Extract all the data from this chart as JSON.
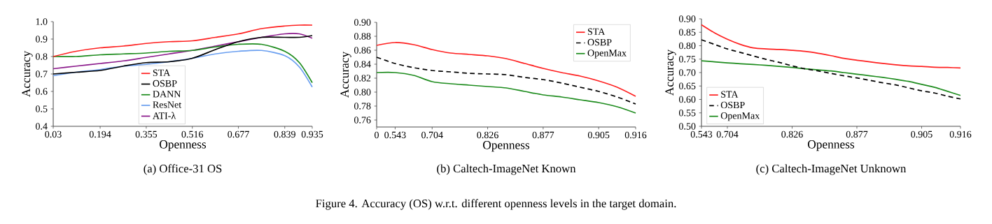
{
  "chart_data": [
    {
      "type": "line",
      "title": "(a) Office-31 OS",
      "xlabel": "Openness",
      "ylabel": "Accuracy",
      "x": [
        0.03,
        0.11,
        0.194,
        0.275,
        0.355,
        0.435,
        0.516,
        0.597,
        0.677,
        0.758,
        0.839,
        0.89,
        0.935
      ],
      "xlim": [
        0.03,
        0.935
      ],
      "xticks": [
        0.03,
        0.194,
        0.355,
        0.516,
        0.677,
        0.839,
        0.935
      ],
      "ylim": [
        0.4,
        1.0
      ],
      "yticks": [
        0.4,
        0.5,
        0.6,
        0.7,
        0.8,
        0.9,
        {
          "value": 1.0,
          "label": "1.0"
        }
      ],
      "legend": "bottom",
      "grid": false,
      "marker": "none",
      "series": [
        {
          "name": "STA",
          "color": "#ff2020",
          "line_style": "solid",
          "values": [
            0.8,
            0.83,
            0.85,
            0.86,
            0.875,
            0.885,
            0.89,
            0.91,
            0.93,
            0.96,
            0.975,
            0.98,
            0.98
          ]
        },
        {
          "name": "OSBP",
          "color": "#000000",
          "line_style": "solid",
          "values": [
            0.7,
            0.71,
            0.72,
            0.745,
            0.765,
            0.77,
            0.79,
            0.84,
            0.885,
            0.91,
            0.91,
            0.91,
            0.92
          ]
        },
        {
          "name": "DANN",
          "color": "#1e8c1e",
          "line_style": "solid",
          "values": [
            0.8,
            0.8,
            0.81,
            0.815,
            0.82,
            0.83,
            0.835,
            0.855,
            0.87,
            0.87,
            0.83,
            0.765,
            0.65
          ]
        },
        {
          "name": "ResNet",
          "color": "#6a9ff0",
          "line_style": "solid",
          "values": [
            0.69,
            0.71,
            0.725,
            0.745,
            0.755,
            0.77,
            0.79,
            0.815,
            0.83,
            0.835,
            0.805,
            0.74,
            0.625
          ]
        },
        {
          "name": "ATI-λ",
          "color": "#8b1a8b",
          "line_style": "solid",
          "values": [
            0.73,
            0.745,
            0.76,
            0.775,
            0.795,
            0.815,
            0.835,
            0.86,
            0.885,
            0.91,
            0.93,
            0.93,
            0.905
          ]
        }
      ]
    },
    {
      "type": "line",
      "title": "(b) Caltech-ImageNet Known",
      "xlabel": "Openness",
      "ylabel": "Accuracy",
      "categories": [
        "0",
        "0.543",
        null,
        "0.704",
        null,
        null,
        "0.826",
        null,
        null,
        "0.877",
        null,
        null,
        "0.905",
        null,
        "0.916"
      ],
      "ylim": [
        0.75,
        0.9
      ],
      "yticks": [
        0.76,
        0.78,
        {
          "value": 0.8,
          "label": "0.80"
        },
        0.82,
        0.84,
        0.86,
        0.88,
        {
          "value": 0.9,
          "label": "0.90"
        }
      ],
      "legend": "top right",
      "grid": false,
      "marker": "none",
      "annotations": [
        "Figure 4. Accuracy (OS) w.r.t. different openness levels in the target domain."
      ],
      "series": [
        {
          "name": "STA",
          "color": "#ff2020",
          "line_style": "solid",
          "values": [
            0.867,
            0.871,
            0.868,
            0.861,
            0.856,
            0.854,
            0.852,
            0.848,
            0.841,
            0.834,
            0.828,
            0.823,
            0.816,
            0.807,
            0.794
          ]
        },
        {
          "name": "OSBP",
          "color": "#000000",
          "line_style": "dashed",
          "values": [
            0.85,
            0.841,
            0.835,
            0.831,
            0.829,
            0.827,
            0.826,
            0.825,
            0.821,
            0.818,
            0.813,
            0.807,
            0.801,
            0.793,
            0.783
          ]
        },
        {
          "name": "OpenMax",
          "color": "#1e8c1e",
          "line_style": "solid",
          "values": [
            0.828,
            0.828,
            0.824,
            0.815,
            0.812,
            0.81,
            0.808,
            0.806,
            0.801,
            0.796,
            0.793,
            0.789,
            0.785,
            0.779,
            0.77
          ]
        }
      ]
    },
    {
      "type": "line",
      "title": "(c) Caltech-ImageNet Unknown",
      "xlabel": "Openness",
      "ylabel": "Accuracy",
      "categories": [
        "0.543",
        null,
        "0.704",
        null,
        null,
        null,
        null,
        "0.826",
        null,
        null,
        null,
        null,
        "0.877",
        null,
        null,
        null,
        null,
        "0.905",
        null,
        null,
        "0.916"
      ],
      "ylim": [
        0.5,
        0.9
      ],
      "yticks": [
        {
          "value": 0.5,
          "label": "0.50"
        },
        0.55,
        {
          "value": 0.6,
          "label": "0.60"
        },
        0.65,
        {
          "value": 0.7,
          "label": "0.70"
        },
        0.75,
        {
          "value": 0.8,
          "label": "0.80"
        },
        0.85,
        {
          "value": 0.9,
          "label": "0.90"
        }
      ],
      "legend": "bottom left",
      "grid": false,
      "marker": "none",
      "series": [
        {
          "name": "STA",
          "color": "#ff2020",
          "line_style": "solid",
          "values": [
            0.878,
            0.848,
            0.824,
            0.805,
            0.792,
            0.788,
            0.786,
            0.783,
            0.779,
            0.772,
            0.763,
            0.753,
            0.746,
            0.74,
            0.734,
            0.729,
            0.725,
            0.723,
            0.72,
            0.719,
            0.717
          ]
        },
        {
          "name": "OSBP",
          "color": "#000000",
          "line_style": "dashed",
          "values": [
            0.822,
            0.805,
            0.788,
            0.775,
            0.762,
            0.749,
            0.738,
            0.725,
            0.714,
            0.706,
            0.697,
            0.688,
            0.68,
            0.671,
            0.662,
            0.654,
            0.643,
            0.632,
            0.624,
            0.612,
            0.602
          ]
        },
        {
          "name": "OpenMax",
          "color": "#1e8c1e",
          "line_style": "solid",
          "values": [
            0.744,
            0.74,
            0.736,
            0.733,
            0.73,
            0.727,
            0.723,
            0.719,
            0.714,
            0.71,
            0.706,
            0.7,
            0.694,
            0.688,
            0.682,
            0.675,
            0.667,
            0.656,
            0.645,
            0.63,
            0.615
          ]
        }
      ]
    }
  ]
}
